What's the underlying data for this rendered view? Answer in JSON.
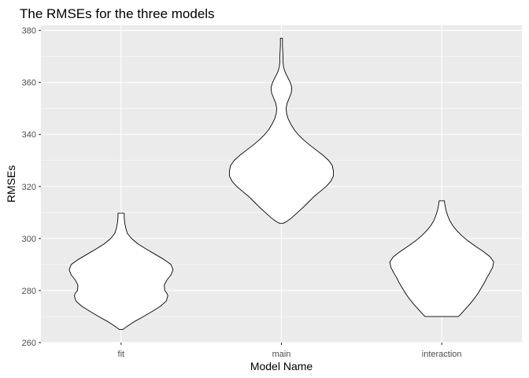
{
  "chart_data": {
    "type": "violin",
    "title": "The RMSEs for the three models",
    "xlabel": "Model Name",
    "ylabel": "RMSEs",
    "ylim": [
      260,
      382
    ],
    "yticks": [
      260,
      280,
      300,
      320,
      340,
      360,
      380
    ],
    "categories": [
      "fit",
      "main",
      "interaction"
    ],
    "grid": true,
    "panel_background": "#ebebeb",
    "violin_fill": "#ffffff",
    "violin_outline": "#000000",
    "violins": [
      {
        "name": "fit",
        "profile": [
          [
            265.0,
            0.03
          ],
          [
            266.0,
            0.1
          ],
          [
            268.0,
            0.25
          ],
          [
            270.0,
            0.43
          ],
          [
            272.0,
            0.6
          ],
          [
            274.0,
            0.76
          ],
          [
            276.0,
            0.87
          ],
          [
            278.0,
            0.9
          ],
          [
            279.0,
            0.88
          ],
          [
            280.0,
            0.84
          ],
          [
            282.0,
            0.83
          ],
          [
            284.0,
            0.88
          ],
          [
            286.0,
            0.96
          ],
          [
            288.0,
            1.0
          ],
          [
            290.0,
            0.96
          ],
          [
            292.0,
            0.82
          ],
          [
            294.0,
            0.65
          ],
          [
            296.0,
            0.48
          ],
          [
            298.0,
            0.32
          ],
          [
            300.0,
            0.2
          ],
          [
            302.0,
            0.12
          ],
          [
            304.0,
            0.09
          ],
          [
            306.0,
            0.07
          ],
          [
            308.0,
            0.06
          ],
          [
            309.7,
            0.06
          ]
        ]
      },
      {
        "name": "main",
        "profile": [
          [
            305.8,
            0.03
          ],
          [
            306.5,
            0.1
          ],
          [
            308.0,
            0.2
          ],
          [
            310.0,
            0.31
          ],
          [
            312.0,
            0.42
          ],
          [
            314.0,
            0.52
          ],
          [
            316.0,
            0.62
          ],
          [
            318.0,
            0.74
          ],
          [
            320.0,
            0.86
          ],
          [
            322.0,
            0.95
          ],
          [
            324.0,
            1.0
          ],
          [
            326.0,
            1.0
          ],
          [
            328.0,
            0.98
          ],
          [
            330.0,
            0.91
          ],
          [
            332.0,
            0.8
          ],
          [
            334.0,
            0.67
          ],
          [
            336.0,
            0.54
          ],
          [
            338.0,
            0.42
          ],
          [
            340.0,
            0.32
          ],
          [
            342.0,
            0.24
          ],
          [
            344.0,
            0.18
          ],
          [
            346.0,
            0.13
          ],
          [
            348.0,
            0.1
          ],
          [
            350.0,
            0.09
          ],
          [
            352.0,
            0.11
          ],
          [
            354.0,
            0.15
          ],
          [
            356.0,
            0.19
          ],
          [
            358.0,
            0.2
          ],
          [
            360.0,
            0.17
          ],
          [
            362.0,
            0.12
          ],
          [
            364.0,
            0.07
          ],
          [
            366.0,
            0.04
          ],
          [
            368.0,
            0.03
          ],
          [
            370.0,
            0.03
          ],
          [
            372.0,
            0.025
          ],
          [
            374.0,
            0.02
          ],
          [
            377.0,
            0.02
          ]
        ]
      },
      {
        "name": "interaction",
        "profile": [
          [
            270.0,
            0.32
          ],
          [
            271.0,
            0.37
          ],
          [
            273.0,
            0.46
          ],
          [
            275.0,
            0.55
          ],
          [
            277.0,
            0.63
          ],
          [
            279.0,
            0.7
          ],
          [
            281.0,
            0.76
          ],
          [
            283.0,
            0.82
          ],
          [
            285.0,
            0.87
          ],
          [
            287.0,
            0.93
          ],
          [
            289.0,
            0.98
          ],
          [
            291.0,
            1.0
          ],
          [
            293.0,
            0.93
          ],
          [
            295.0,
            0.8
          ],
          [
            297.0,
            0.65
          ],
          [
            299.0,
            0.51
          ],
          [
            301.0,
            0.39
          ],
          [
            303.0,
            0.29
          ],
          [
            305.0,
            0.21
          ],
          [
            307.0,
            0.15
          ],
          [
            309.0,
            0.11
          ],
          [
            311.0,
            0.08
          ],
          [
            313.0,
            0.06
          ],
          [
            314.5,
            0.05
          ]
        ]
      }
    ]
  }
}
